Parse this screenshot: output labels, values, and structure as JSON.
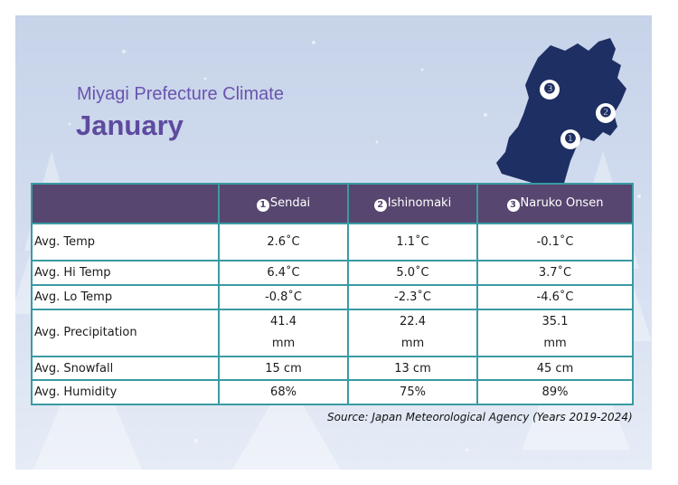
{
  "header": {
    "subtitle": "Miyagi Prefecture Climate",
    "title": "January"
  },
  "map": {
    "markers": [
      "❸",
      "❷",
      "❶"
    ]
  },
  "table": {
    "corner": "",
    "columns": [
      {
        "num": "1",
        "name": "Sendai"
      },
      {
        "num": "2",
        "name": "Ishinomaki"
      },
      {
        "num": "3",
        "name": "Naruko Onsen"
      }
    ],
    "rows": [
      {
        "label": "Avg. Temp",
        "values": [
          "2.6˚C",
          "1.1˚C",
          "-0.1˚C"
        ]
      },
      {
        "label": "Avg. Hi Temp",
        "values": [
          "6.4˚C",
          "5.0˚C",
          "3.7˚C"
        ]
      },
      {
        "label": "Avg. Lo Temp",
        "values": [
          "-0.8˚C",
          "-2.3˚C",
          "-4.6˚C"
        ]
      },
      {
        "label": "Avg. Precipitation",
        "values": [
          [
            "41.4",
            "mm"
          ],
          [
            "22.4",
            "mm"
          ],
          [
            "35.1",
            "mm"
          ]
        ]
      },
      {
        "label": "Avg. Snowfall",
        "values": [
          "15 cm",
          "13 cm",
          "45 cm"
        ]
      },
      {
        "label": "Avg. Humidity",
        "values": [
          "68%",
          "75%",
          "89%"
        ]
      }
    ]
  },
  "source": "Source: Japan Meteorological Agency (Years 2019-2024)",
  "colors": {
    "header_bg": "#57466f",
    "border": "#3a9aa3",
    "title": "#5e4a9e",
    "map": "#1e2f63"
  }
}
